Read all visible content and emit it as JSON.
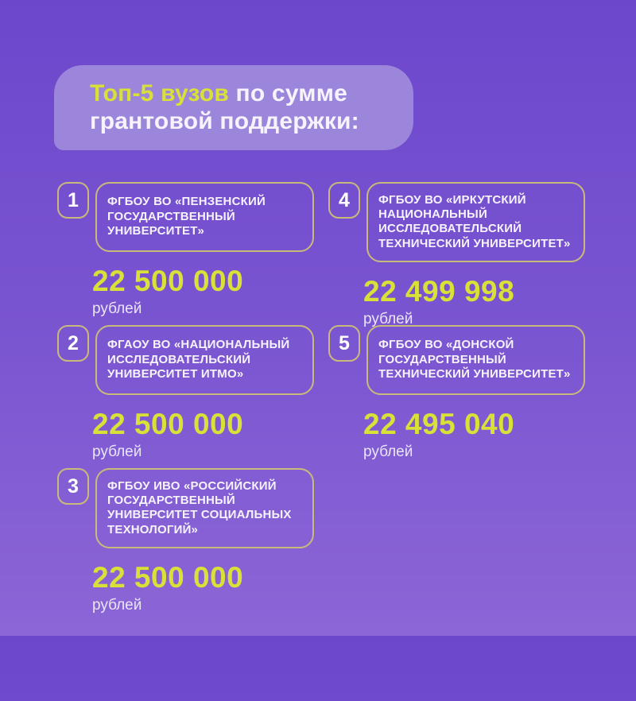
{
  "header": {
    "highlight": "Топ-5 вузов",
    "rest": " по сумме грантовой поддержки:"
  },
  "items": [
    {
      "rank": "1",
      "name": "ФГБОУ ВО «ПЕНЗЕНСКИЙ ГОСУДАРСТВЕННЫЙ УНИВЕРСИТЕТ»",
      "amount": "22 500 000",
      "unit": "рублей"
    },
    {
      "rank": "2",
      "name": "ФГАОУ ВО «НАЦИОНАЛЬНЫЙ ИССЛЕДОВАТЕЛЬСКИЙ УНИВЕРСИТЕТ ИТМО»",
      "amount": "22 500 000",
      "unit": "рублей"
    },
    {
      "rank": "3",
      "name": "ФГБОУ ИВО «РОССИЙСКИЙ ГОСУДАРСТВЕННЫЙ УНИВЕРСИТЕТ СОЦИАЛЬНЫХ ТЕХНОЛОГИЙ»",
      "amount": "22 500 000",
      "unit": "рублей"
    },
    {
      "rank": "4",
      "name": "ФГБОУ ВО «ИРКУТСКИЙ НАЦИОНАЛЬНЫЙ ИССЛЕДОВАТЕЛЬСКИЙ ТЕХНИЧЕСКИЙ УНИВЕРСИТЕТ»",
      "amount": "22 499 998",
      "unit": "рублей"
    },
    {
      "rank": "5",
      "name": "ФГБОУ ВО «ДОНСКОЙ ГОСУДАРСТВЕННЫЙ ТЕХНИЧЕСКИЙ УНИВЕРСИТЕТ»",
      "amount": "22 495 040",
      "unit": "рублей"
    }
  ],
  "colors": {
    "background_top": "#6c47cc",
    "background_bottom": "#8c66d6",
    "accent_yellow": "#d9e138",
    "border_gold": "#c9ba7c",
    "header_card": "#9c86dc",
    "text_white": "#f6f3fc"
  },
  "chart_data": {
    "type": "table",
    "title": "Топ-5 вузов по сумме грантовой поддержки:",
    "categories": [
      "ФГБОУ ВО «ПЕНЗЕНСКИЙ ГОСУДАРСТВЕННЫЙ УНИВЕРСИТЕТ»",
      "ФГАОУ ВО «НАЦИОНАЛЬНЫЙ ИССЛЕДОВАТЕЛЬСКИЙ УНИВЕРСИТЕТ ИТМО»",
      "ФГБОУ ИВО «РОССИЙСКИЙ ГОСУДАРСТВЕННЫЙ УНИВЕРСИТЕТ СОЦИАЛЬНЫХ ТЕХНОЛОГИЙ»",
      "ФГБОУ ВО «ИРКУТСКИЙ НАЦИОНАЛЬНЫЙ ИССЛЕДОВАТЕЛЬСКИЙ ТЕХНИЧЕСКИЙ УНИВЕРСИТЕТ»",
      "ФГБОУ ВО «ДОНСКОЙ ГОСУДАРСТВЕННЫЙ ТЕХНИЧЕСКИЙ УНИВЕРСИТЕТ»"
    ],
    "ranks": [
      1,
      2,
      3,
      4,
      5
    ],
    "values": [
      22500000,
      22500000,
      22500000,
      22499998,
      22495040
    ],
    "unit": "рублей"
  }
}
